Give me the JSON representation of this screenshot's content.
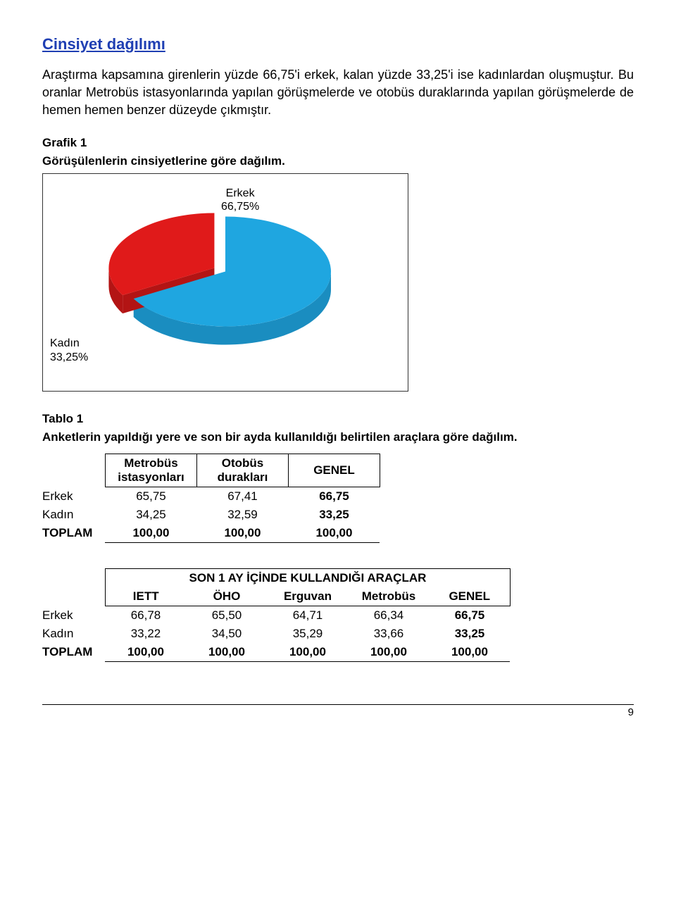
{
  "section_title": "Cinsiyet dağılımı",
  "title_color": "#1f3fb3",
  "paragraph": "Araştırma kapsamına girenlerin yüzde 66,75'i erkek, kalan yüzde 33,25'i ise kadınlardan oluşmuştur. Bu oranlar Metrobüs istasyonlarında yapılan görüşmelerde ve otobüs duraklarında yapılan görüşmelerde de hemen hemen benzer düzeyde çıkmıştır.",
  "chart": {
    "heading_line1": "Grafik  1",
    "heading_line2": "Görüşülenlerin cinsiyetlerine göre dağılım.",
    "type": "pie-3d",
    "slices": [
      {
        "label": "Erkek",
        "pct_text": "66,75%",
        "value": 66.75,
        "color": "#1fa6e0",
        "side_color": "#1a8dc0",
        "exploded": false
      },
      {
        "label": "Kadın",
        "pct_text": "33,25%",
        "value": 33.25,
        "color": "#e01a1a",
        "side_color": "#b31414",
        "exploded": true
      }
    ],
    "background": "#ffffff",
    "border_color": "#333333"
  },
  "table1": {
    "heading_line1": "Tablo 1",
    "heading_line2": "Anketlerin yapıldığı yere ve son bir ayda kullanıldığı belirtilen araçlara göre dağılım.",
    "columns": [
      "Metrobüs istasyonları",
      "Otobüs durakları",
      "GENEL"
    ],
    "rows": [
      {
        "label": "Erkek",
        "vals": [
          "65,75",
          "67,41",
          "66,75"
        ],
        "bold": false
      },
      {
        "label": "Kadın",
        "vals": [
          "34,25",
          "32,59",
          "33,25"
        ],
        "bold": false
      },
      {
        "label": "TOPLAM",
        "vals": [
          "100,00",
          "100,00",
          "100,00"
        ],
        "bold": true
      }
    ]
  },
  "table2": {
    "banner": "SON 1 AY İÇİNDE KULLANDIĞI ARAÇLAR",
    "columns": [
      "IETT",
      "ÖHO",
      "Erguvan",
      "Metrobüs",
      "GENEL"
    ],
    "rows": [
      {
        "label": "Erkek",
        "vals": [
          "66,78",
          "65,50",
          "64,71",
          "66,34",
          "66,75"
        ],
        "bold": false
      },
      {
        "label": "Kadın",
        "vals": [
          "33,22",
          "34,50",
          "35,29",
          "33,66",
          "33,25"
        ],
        "bold": false
      },
      {
        "label": "TOPLAM",
        "vals": [
          "100,00",
          "100,00",
          "100,00",
          "100,00",
          "100,00"
        ],
        "bold": true
      }
    ]
  },
  "page_number": "9"
}
